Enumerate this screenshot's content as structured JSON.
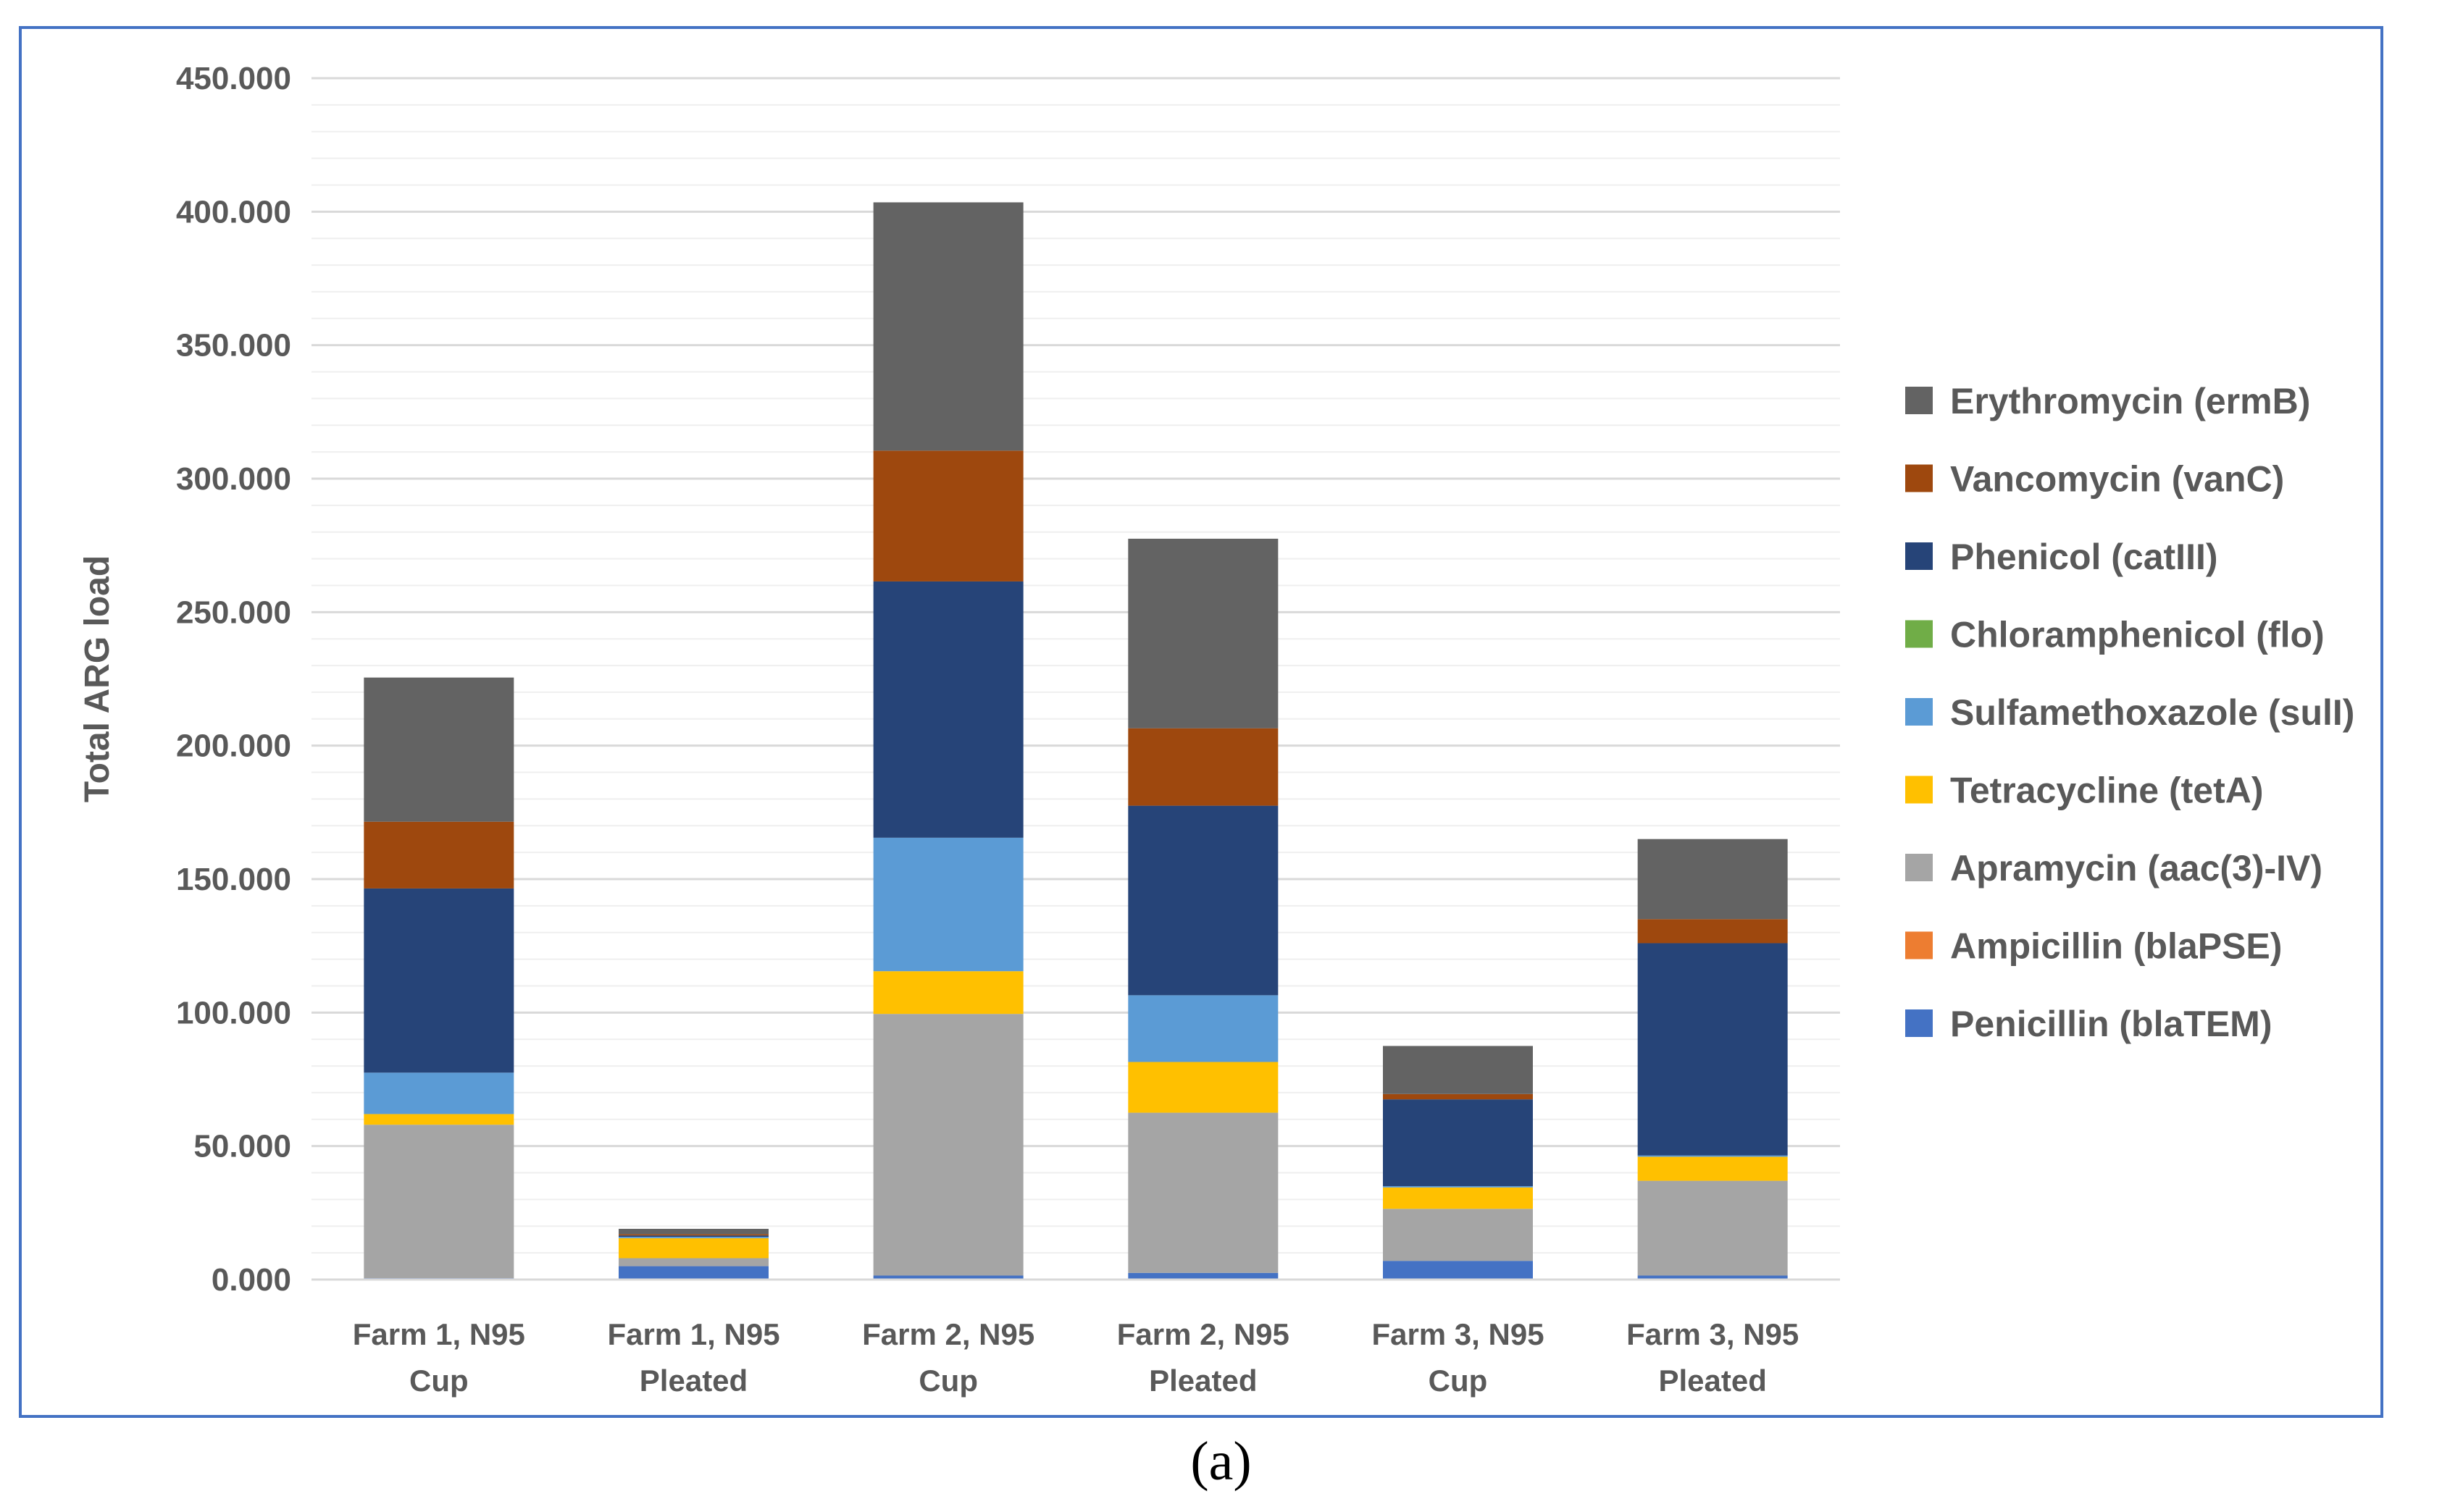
{
  "chart_data": {
    "type": "bar",
    "stacked": true,
    "ylabel": "Total ARG load",
    "ylim": [
      0,
      450
    ],
    "yticks": [
      "0.000",
      "50.000",
      "100.000",
      "150.000",
      "200.000",
      "250.000",
      "300.000",
      "350.000",
      "400.000",
      "450.000"
    ],
    "grid": true,
    "legend_position": "right",
    "categories": [
      [
        "Farm 1, N95",
        "Cup"
      ],
      [
        "Farm 1, N95",
        "Pleated"
      ],
      [
        "Farm 2, N95",
        "Cup"
      ],
      [
        "Farm 2, N95",
        "Pleated"
      ],
      [
        "Farm 3, N95",
        "Cup"
      ],
      [
        "Farm 3, N95",
        "Pleated"
      ]
    ],
    "series": [
      {
        "name": "Penicillin (blaTEM)",
        "color": "#4472c4",
        "values": [
          0.5,
          5,
          1.5,
          2.5,
          7,
          1.5
        ]
      },
      {
        "name": "Ampicillin (blaPSE)",
        "color": "#ed7d31",
        "values": [
          0,
          0,
          0,
          0,
          0,
          0
        ]
      },
      {
        "name": "Apramycin (aac(3)-IV)",
        "color": "#a5a5a5",
        "values": [
          57.5,
          3,
          98,
          60,
          19.5,
          35.5
        ]
      },
      {
        "name": "Tetracycline (tetA)",
        "color": "#ffc000",
        "values": [
          4,
          7.5,
          16,
          19,
          8,
          9
        ]
      },
      {
        "name": "Sulfamethoxazole (sulI)",
        "color": "#5b9bd5",
        "values": [
          15.5,
          0.5,
          50,
          25,
          0.5,
          0.5
        ]
      },
      {
        "name": "Chloramphenicol (flo)",
        "color": "#70ad47",
        "values": [
          0,
          0,
          0,
          0,
          0,
          0
        ]
      },
      {
        "name": "Phenicol (catIII)",
        "color": "#264478",
        "values": [
          69,
          0.5,
          96,
          71,
          32.5,
          79.5
        ]
      },
      {
        "name": "Vancomycin (vanC)",
        "color": "#9e480e",
        "values": [
          25,
          0.5,
          49,
          29,
          2,
          9
        ]
      },
      {
        "name": "Erythromycin (ermB)",
        "color": "#636363",
        "values": [
          54,
          2,
          93,
          71,
          18,
          30
        ]
      }
    ]
  },
  "caption": "(a)"
}
